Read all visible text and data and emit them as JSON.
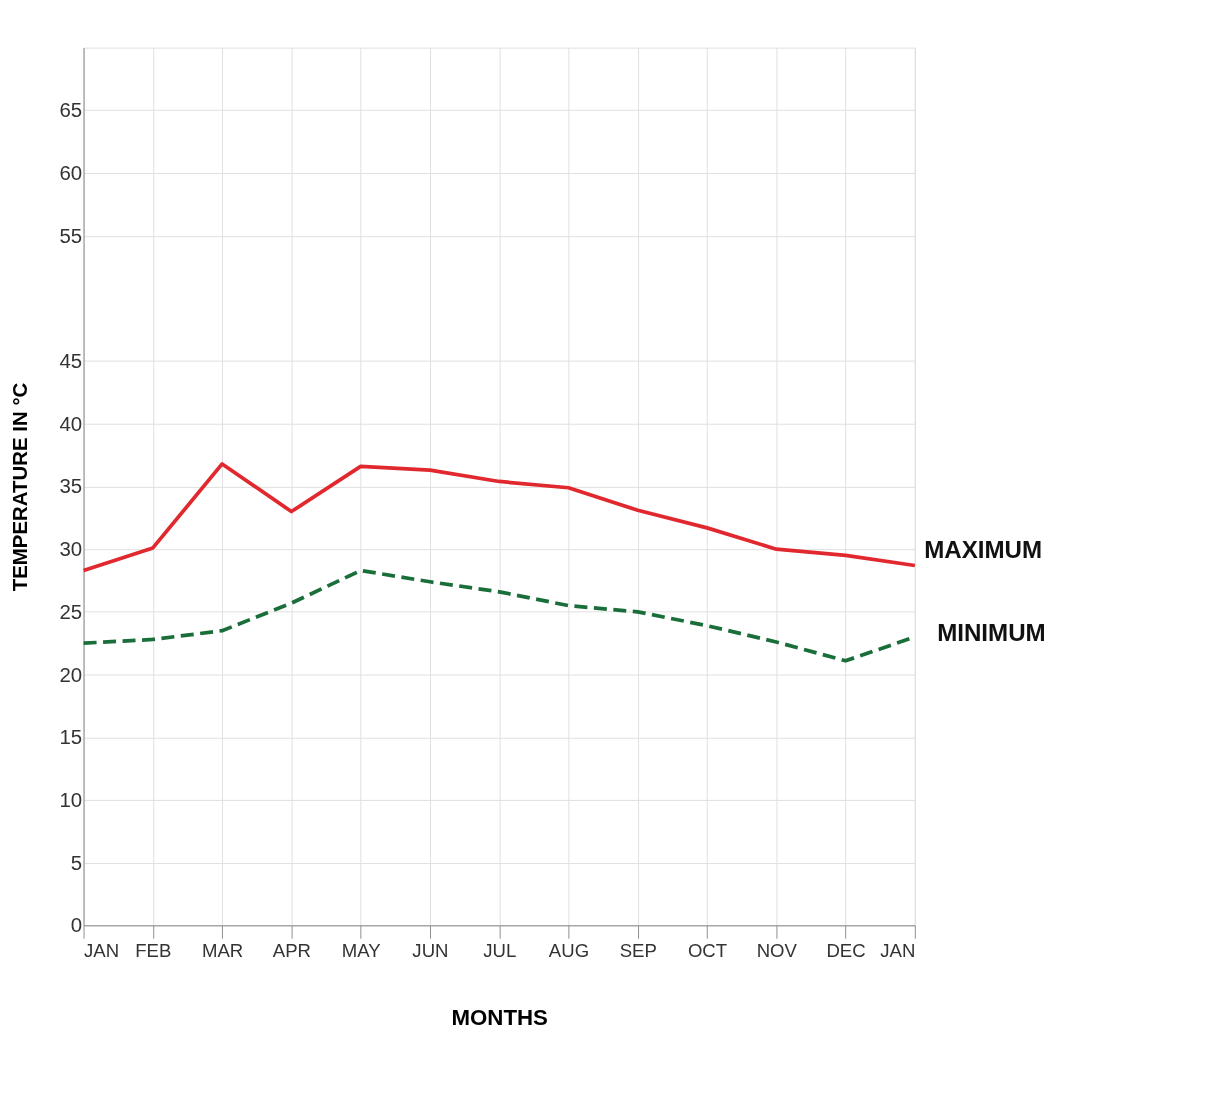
{
  "chart_data": {
    "type": "line",
    "xlabel": "MONTHS",
    "ylabel": "TEMPERATURE IN °C",
    "categories": [
      "JAN",
      "FEB",
      "MAR",
      "APR",
      "MAY",
      "JUN",
      "JUL",
      "AUG",
      "SEP",
      "OCT",
      "NOV",
      "DEC",
      "JAN"
    ],
    "series": [
      {
        "name": "MAXIMUM",
        "color": "#e0282e",
        "line_style": "solid",
        "values": [
          28.3,
          30.1,
          36.8,
          33.0,
          36.6,
          36.3,
          35.4,
          34.9,
          33.1,
          31.7,
          30.0,
          29.5,
          28.7
        ]
      },
      {
        "name": "MINIMUM",
        "color": "#1a6e3a",
        "line_style": "dashed",
        "values": [
          22.5,
          22.8,
          23.5,
          25.7,
          28.3,
          27.4,
          26.6,
          25.5,
          25.0,
          23.9,
          22.6,
          21.1,
          23.0
        ]
      }
    ],
    "ylim": [
      0,
      70
    ],
    "yticks": [
      0,
      5,
      10,
      15,
      20,
      25,
      30,
      35,
      40,
      45,
      55,
      60,
      65
    ],
    "grid": true,
    "legend": false,
    "marker": "none"
  }
}
